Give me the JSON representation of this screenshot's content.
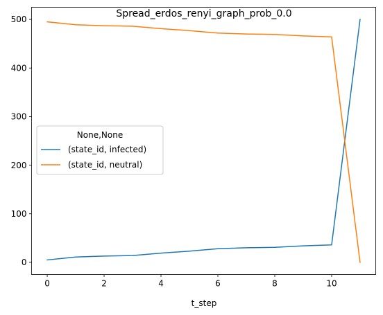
{
  "chart_data": {
    "type": "line",
    "title": "Spread_erdos_renyi_graph_prob_0.0",
    "xlabel": "t_step",
    "ylabel": "",
    "x": [
      0,
      1,
      2,
      3,
      4,
      5,
      6,
      7,
      8,
      9,
      10,
      11
    ],
    "xlim": [
      -0.55,
      11.55
    ],
    "ylim": [
      -25,
      525
    ],
    "xticks": [
      0,
      2,
      4,
      6,
      8,
      10
    ],
    "yticks": [
      0,
      100,
      200,
      300,
      400,
      500
    ],
    "grid": false,
    "legend": {
      "title": "None,None",
      "placement": "center-left"
    },
    "series": [
      {
        "name": "(state_id, infected)",
        "color": "#1f77b4",
        "values": [
          5,
          11,
          13,
          14,
          19,
          23,
          28,
          30,
          31,
          34,
          36,
          500
        ]
      },
      {
        "name": "(state_id, neutral)",
        "color": "#ff7f0e",
        "values": [
          495,
          489,
          487,
          486,
          481,
          477,
          472,
          470,
          469,
          466,
          464,
          0
        ]
      }
    ]
  }
}
